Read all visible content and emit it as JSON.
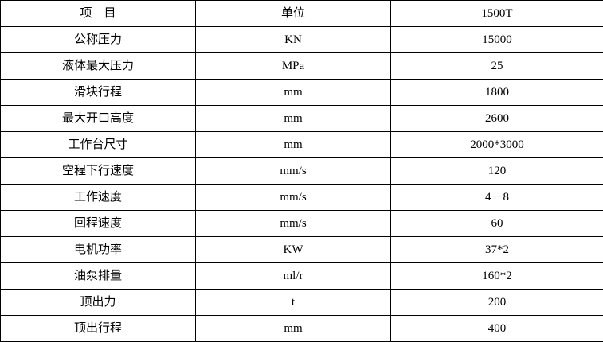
{
  "colors": {
    "background": "#ffffff",
    "border": "#000000",
    "text": "#000000"
  },
  "table": {
    "header": {
      "item": "项　目",
      "unit": "单位",
      "model": "1500T"
    },
    "rows": [
      {
        "item": "公称压力",
        "unit": "KN",
        "value": "15000"
      },
      {
        "item": "液体最大压力",
        "unit": "MPa",
        "value": "25"
      },
      {
        "item": "滑块行程",
        "unit": "mm",
        "value": "1800"
      },
      {
        "item": "最大开口高度",
        "unit": "mm",
        "value": "2600"
      },
      {
        "item": "工作台尺寸",
        "unit": "mm",
        "value": "2000*3000"
      },
      {
        "item": "空程下行速度",
        "unit": "mm/s",
        "value": "120"
      },
      {
        "item": "工作速度",
        "unit": "mm/s",
        "value": "4－8"
      },
      {
        "item": "回程速度",
        "unit": "mm/s",
        "value": "60"
      },
      {
        "item": "电机功率",
        "unit": "KW",
        "value": "37*2"
      },
      {
        "item": "油泵排量",
        "unit": "ml/r",
        "value": "160*2"
      },
      {
        "item": "顶出力",
        "unit": "t",
        "value": "200"
      },
      {
        "item": "顶出行程",
        "unit": "mm",
        "value": "400"
      }
    ]
  }
}
